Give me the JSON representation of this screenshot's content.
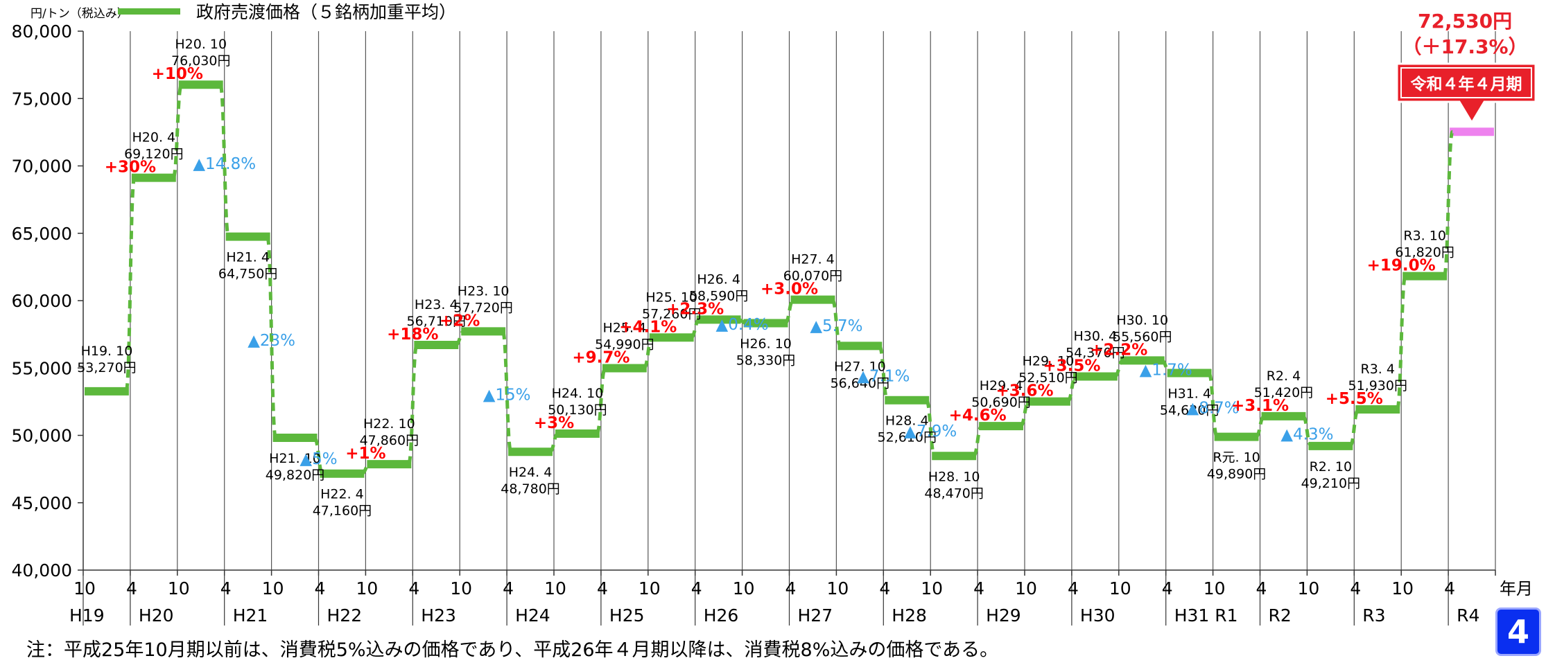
{
  "chart_data": {
    "type": "line",
    "step": true,
    "ylabel": "円/トン（税込み）",
    "xunit": "年月",
    "legend": {
      "label": "政府売渡価格（５銘柄加重平均）",
      "color": "#5cb83c",
      "position": "top-left"
    },
    "ylim": [
      40000,
      80000
    ],
    "yticks": [
      "40,000",
      "45,000",
      "50,000",
      "55,000",
      "60,000",
      "65,000",
      "70,000",
      "75,000",
      "80,000"
    ],
    "ytick_values": [
      40000,
      45000,
      50000,
      55000,
      60000,
      65000,
      70000,
      75000,
      80000
    ],
    "grid": "vertical",
    "periods": [
      "H19.10",
      "H20.4",
      "H20.10",
      "H21.4",
      "H21.10",
      "H22.4",
      "H22.10",
      "H23.4",
      "H23.10",
      "H24.4",
      "H24.10",
      "H25.4",
      "H25.10",
      "H26.4",
      "H26.10",
      "H27.4",
      "H27.10",
      "H28.4",
      "H28.10",
      "H29.4",
      "H29.10",
      "H30.4",
      "H30.10",
      "H31.4",
      "R元.10",
      "R2.4",
      "R2.10",
      "R3.4",
      "R3.10",
      "R4.4"
    ],
    "x_month_labels": [
      "10",
      "4",
      "10",
      "4",
      "10",
      "4",
      "10",
      "4",
      "10",
      "4",
      "10",
      "4",
      "10",
      "4",
      "10",
      "4",
      "10",
      "4",
      "10",
      "4",
      "10",
      "4",
      "10",
      "4",
      "10",
      "4",
      "10",
      "4",
      "10",
      "4"
    ],
    "x_year_labels": [
      {
        "text": "H19",
        "at": 0
      },
      {
        "text": "H20",
        "at": 1
      },
      {
        "text": "H21",
        "at": 3
      },
      {
        "text": "H22",
        "at": 5
      },
      {
        "text": "H23",
        "at": 7
      },
      {
        "text": "H24",
        "at": 9
      },
      {
        "text": "H25",
        "at": 11
      },
      {
        "text": "H26",
        "at": 13
      },
      {
        "text": "H27",
        "at": 15
      },
      {
        "text": "H28",
        "at": 17
      },
      {
        "text": "H29",
        "at": 19
      },
      {
        "text": "H30",
        "at": 21
      },
      {
        "text": "H31 R1",
        "at": 23
      },
      {
        "text": "R2",
        "at": 25
      },
      {
        "text": "R3",
        "at": 27
      },
      {
        "text": "R4",
        "at": 29
      }
    ],
    "values": [
      53270,
      69120,
      76030,
      64750,
      49820,
      47160,
      47860,
      56710,
      57720,
      48780,
      50130,
      54990,
      57260,
      58590,
      58330,
      60070,
      56640,
      52610,
      48470,
      50690,
      52510,
      54370,
      55560,
      54630,
      49890,
      51420,
      49210,
      51930,
      61820,
      72530
    ],
    "price_labels": [
      {
        "period": "H19. 10",
        "price": "53,270円",
        "i": 0
      },
      {
        "period": "H20. 4",
        "price": "69,120円",
        "i": 1
      },
      {
        "period": "H20. 10",
        "price": "76,030円",
        "i": 2
      },
      {
        "period": "H21. 4",
        "price": "64,750円",
        "i": 3
      },
      {
        "period": "H21. 10",
        "price": "49,820円",
        "i": 4
      },
      {
        "period": "H22. 4",
        "price": "47,160円",
        "i": 5
      },
      {
        "period": "H22. 10",
        "price": "47,860円",
        "i": 6
      },
      {
        "period": "H23. 4",
        "price": "56,710円",
        "i": 7
      },
      {
        "period": "H23. 10",
        "price": "57,720円",
        "i": 8
      },
      {
        "period": "H24. 4",
        "price": "48,780円",
        "i": 9
      },
      {
        "period": "H24. 10",
        "price": "50,130円",
        "i": 10
      },
      {
        "period": "H25. 4",
        "price": "54,990円",
        "i": 11
      },
      {
        "period": "H25. 10",
        "price": "57,260円",
        "i": 12
      },
      {
        "period": "H26. 4",
        "price": "58,590円",
        "i": 13
      },
      {
        "period": "H26. 10",
        "price": "58,330円",
        "i": 14
      },
      {
        "period": "H27. 4",
        "price": "60,070円",
        "i": 15
      },
      {
        "period": "H27. 10",
        "price": "56,640円",
        "i": 16
      },
      {
        "period": "H28. 4",
        "price": "52,610円",
        "i": 17
      },
      {
        "period": "H28. 10",
        "price": "48,470円",
        "i": 18
      },
      {
        "period": "H29. 4",
        "price": "50,690円",
        "i": 19
      },
      {
        "period": "H29. 10",
        "price": "52,510円",
        "i": 20
      },
      {
        "period": "H30. 4",
        "price": "54,370円",
        "i": 21
      },
      {
        "period": "H30. 10",
        "price": "55,560円",
        "i": 22
      },
      {
        "period": "H31. 4",
        "price": "54,630円",
        "i": 23
      },
      {
        "period": "R元. 10",
        "price": "49,890円",
        "i": 24
      },
      {
        "period": "R2. 4",
        "price": "51,420円",
        "i": 25
      },
      {
        "period": "R2. 10",
        "price": "49,210円",
        "i": 26
      },
      {
        "period": "R3. 4",
        "price": "51,930円",
        "i": 27
      },
      {
        "period": "R3. 10",
        "price": "61,820円",
        "i": 28
      }
    ],
    "change_labels": [
      {
        "text": "+30%",
        "dir": "up",
        "i": 1
      },
      {
        "text": "+10%",
        "dir": "up",
        "i": 2
      },
      {
        "text": "▲14.8%",
        "dir": "down",
        "i": 3
      },
      {
        "text": "▲23%",
        "dir": "down",
        "i": 4
      },
      {
        "text": "▲5%",
        "dir": "down",
        "i": 5
      },
      {
        "text": "+1%",
        "dir": "up",
        "i": 6
      },
      {
        "text": "+18%",
        "dir": "up",
        "i": 7
      },
      {
        "text": "+2%",
        "dir": "up",
        "i": 8
      },
      {
        "text": "▲15%",
        "dir": "down",
        "i": 9
      },
      {
        "text": "+3%",
        "dir": "up",
        "i": 10
      },
      {
        "text": "+9.7%",
        "dir": "up",
        "i": 11
      },
      {
        "text": "+4.1%",
        "dir": "up",
        "i": 12
      },
      {
        "text": "+2.3%",
        "dir": "up",
        "i": 13
      },
      {
        "text": "▲0.4%",
        "dir": "down",
        "i": 14
      },
      {
        "text": "+3.0%",
        "dir": "up",
        "i": 15
      },
      {
        "text": "▲5.7%",
        "dir": "down",
        "i": 16
      },
      {
        "text": "▲7.1%",
        "dir": "down",
        "i": 17
      },
      {
        "text": "▲7.9%",
        "dir": "down",
        "i": 18
      },
      {
        "text": "+4.6%",
        "dir": "up",
        "i": 19
      },
      {
        "text": "+3.6%",
        "dir": "up",
        "i": 20
      },
      {
        "text": "+3.5%",
        "dir": "up",
        "i": 21
      },
      {
        "text": "+2.2%",
        "dir": "up",
        "i": 22
      },
      {
        "text": "▲1.7%",
        "dir": "down",
        "i": 23
      },
      {
        "text": "▲8.7%",
        "dir": "down",
        "i": 24
      },
      {
        "text": "+3.1%",
        "dir": "up",
        "i": 25
      },
      {
        "text": "▲4.3%",
        "dir": "down",
        "i": 26
      },
      {
        "text": "+5.5%",
        "dir": "up",
        "i": 27
      },
      {
        "text": "+19.0%",
        "dir": "up",
        "i": 28
      }
    ],
    "highlight": {
      "i": 29,
      "price": "72,530円",
      "change": "（＋17.3%）",
      "callout": "令和４年４月期",
      "color": "#ee82ee"
    },
    "colors": {
      "line": "#5cb83c",
      "up": "#ff0000",
      "down": "#3aa0e8",
      "callout": "#e8202a"
    }
  },
  "note": "注：平成25年10月期以前は、消費税5%込みの価格であり、平成26年４月期以降は、消費税8%込みの価格である。",
  "page_number": "4"
}
